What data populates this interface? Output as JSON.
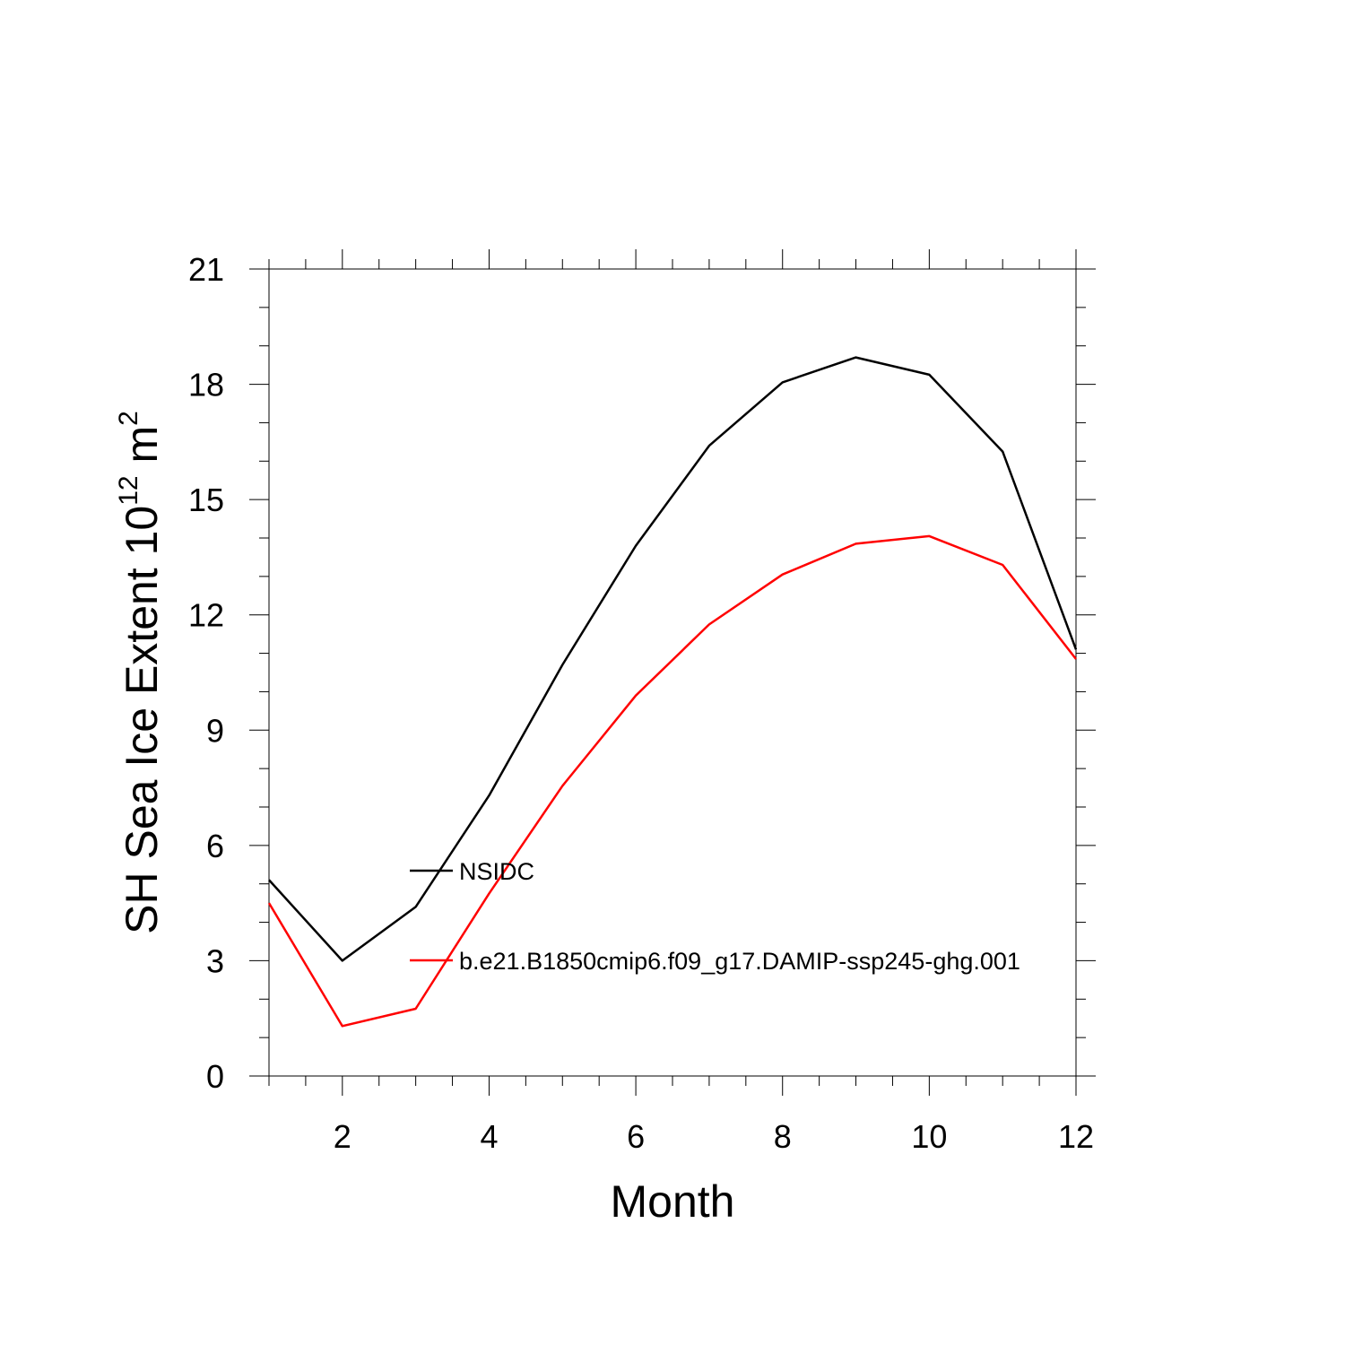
{
  "chart_data": {
    "type": "line",
    "title": "",
    "xlabel": "Month",
    "ylabel": "SH Sea Ice Extent 10",
    "ylabel_exponent": "12",
    "ylabel_unit": "m",
    "ylabel_unit_exponent": "2",
    "xlim": [
      1,
      12
    ],
    "ylim": [
      0,
      21
    ],
    "x_ticks": [
      2,
      4,
      6,
      8,
      10,
      12
    ],
    "y_ticks": [
      0,
      3,
      6,
      9,
      12,
      15,
      18,
      21
    ],
    "grid": false,
    "legend_position": "inside-lower-left",
    "x": [
      1,
      2,
      3,
      4,
      5,
      6,
      7,
      8,
      9,
      10,
      11,
      12
    ],
    "series": [
      {
        "name": "NSIDC",
        "color": "#000000",
        "values": [
          5.1,
          3.0,
          4.4,
          7.3,
          10.7,
          13.8,
          16.4,
          18.05,
          18.7,
          18.25,
          16.25,
          11.1
        ]
      },
      {
        "name": "b.e21.B1850cmip6.f09_g17.DAMIP-ssp245-ghg.001",
        "color": "#ff0000",
        "values": [
          4.5,
          1.3,
          1.75,
          4.75,
          7.55,
          9.9,
          11.75,
          13.05,
          13.85,
          14.05,
          13.3,
          10.85
        ]
      }
    ]
  }
}
